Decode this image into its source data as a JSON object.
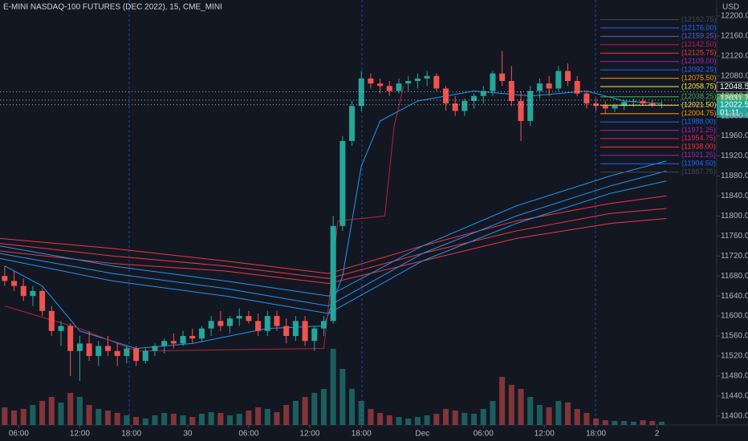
{
  "chart_data": {
    "type": "candlestick",
    "title": "E-MINI NASDAQ-100 FUTURES (DEC 2022), 15, CME_MINI",
    "currency": "USD",
    "up_color": "#26a69a",
    "down_color": "#ef5350",
    "ohlc": [
      [
        11680,
        11700,
        11660,
        11670
      ],
      [
        11670,
        11690,
        11650,
        11660
      ],
      [
        11660,
        11675,
        11630,
        11640
      ],
      [
        11640,
        11660,
        11620,
        11650
      ],
      [
        11650,
        11655,
        11600,
        11610
      ],
      [
        11610,
        11620,
        11560,
        11570
      ],
      [
        11570,
        11590,
        11540,
        11580
      ],
      [
        11580,
        11585,
        11480,
        11530
      ],
      [
        11530,
        11560,
        11470,
        11545
      ],
      [
        11545,
        11570,
        11510,
        11520
      ],
      [
        11520,
        11550,
        11500,
        11540
      ],
      [
        11540,
        11560,
        11520,
        11530
      ],
      [
        11530,
        11545,
        11500,
        11520
      ],
      [
        11520,
        11540,
        11505,
        11535
      ],
      [
        11535,
        11540,
        11500,
        11510
      ],
      [
        11510,
        11535,
        11505,
        11530
      ],
      [
        11530,
        11545,
        11520,
        11540
      ],
      [
        11540,
        11555,
        11525,
        11550
      ],
      [
        11550,
        11565,
        11535,
        11545
      ],
      [
        11545,
        11570,
        11540,
        11560
      ],
      [
        11560,
        11575,
        11545,
        11555
      ],
      [
        11555,
        11580,
        11550,
        11575
      ],
      [
        11575,
        11600,
        11560,
        11590
      ],
      [
        11590,
        11610,
        11570,
        11580
      ],
      [
        11580,
        11600,
        11565,
        11595
      ],
      [
        11595,
        11615,
        11580,
        11600
      ],
      [
        11600,
        11610,
        11585,
        11590
      ],
      [
        11590,
        11605,
        11560,
        11570
      ],
      [
        11570,
        11610,
        11560,
        11600
      ],
      [
        11600,
        11610,
        11570,
        11580
      ],
      [
        11580,
        11595,
        11545,
        11560
      ],
      [
        11560,
        11600,
        11550,
        11590
      ],
      [
        11590,
        11600,
        11540,
        11550
      ],
      [
        11550,
        11580,
        11530,
        11575
      ],
      [
        11575,
        11600,
        11560,
        11590
      ],
      [
        11590,
        11800,
        11585,
        11780
      ],
      [
        11780,
        11960,
        11770,
        11950
      ],
      [
        11950,
        12030,
        11940,
        12020
      ],
      [
        12020,
        12090,
        12010,
        12075
      ],
      [
        12075,
        12085,
        12055,
        12065
      ],
      [
        12065,
        12075,
        12045,
        12060
      ],
      [
        12060,
        12070,
        12040,
        12050
      ],
      [
        12050,
        12075,
        12045,
        12065
      ],
      [
        12065,
        12080,
        12050,
        12070
      ],
      [
        12070,
        12085,
        12055,
        12075
      ],
      [
        12075,
        12090,
        12060,
        12080
      ],
      [
        12080,
        12085,
        12050,
        12055
      ],
      [
        12055,
        12060,
        12010,
        12025
      ],
      [
        12025,
        12040,
        12000,
        12010
      ],
      [
        12010,
        12035,
        12000,
        12030
      ],
      [
        12030,
        12045,
        12015,
        12040
      ],
      [
        12040,
        12060,
        12025,
        12050
      ],
      [
        12050,
        12090,
        12040,
        12085
      ],
      [
        12085,
        12130,
        12060,
        12070
      ],
      [
        12070,
        12100,
        12020,
        12030
      ],
      [
        12030,
        12050,
        11950,
        11990
      ],
      [
        11990,
        12060,
        11980,
        12050
      ],
      [
        12050,
        12075,
        12035,
        12065
      ],
      [
        12065,
        12080,
        12040,
        12055
      ],
      [
        12055,
        12100,
        12050,
        12090
      ],
      [
        12090,
        12105,
        12060,
        12070
      ],
      [
        12070,
        12080,
        12040,
        12045
      ],
      [
        12045,
        12050,
        12015,
        12025
      ],
      [
        12025,
        12035,
        12010,
        12020
      ],
      [
        12020,
        12030,
        12005,
        12015
      ],
      [
        12015,
        12025,
        12008,
        12020
      ],
      [
        12020,
        12032,
        12012,
        12028
      ],
      [
        12028,
        12035,
        12018,
        12030
      ],
      [
        12030,
        12036,
        12020,
        12025
      ],
      [
        12025,
        12032,
        12018,
        12022
      ],
      [
        12022,
        12030,
        12015,
        12022.5
      ]
    ],
    "volume": [
      22,
      18,
      20,
      25,
      30,
      35,
      28,
      40,
      35,
      25,
      20,
      18,
      15,
      12,
      10,
      8,
      12,
      15,
      14,
      12,
      10,
      14,
      16,
      15,
      12,
      14,
      18,
      22,
      20,
      16,
      25,
      30,
      35,
      40,
      45,
      95,
      70,
      45,
      30,
      20,
      15,
      12,
      10,
      8,
      10,
      12,
      14,
      20,
      18,
      15,
      14,
      20,
      30,
      60,
      50,
      45,
      35,
      25,
      22,
      30,
      28,
      20,
      15,
      8,
      6,
      5,
      5,
      4,
      6,
      5,
      4
    ],
    "volume_lim": [
      0,
      100
    ],
    "xlim": [
      0,
      72
    ],
    "xticks": [
      {
        "value": 2,
        "label": "06:00"
      },
      {
        "value": 8.5,
        "label": "12:00"
      },
      {
        "value": 14,
        "label": "18:00"
      },
      {
        "value": 20,
        "label": "30"
      },
      {
        "value": 26.5,
        "label": "06:00"
      },
      {
        "value": 33,
        "label": "12:00"
      },
      {
        "value": 38.5,
        "label": "18:00"
      },
      {
        "value": 45,
        "label": "Dec"
      },
      {
        "value": 51.5,
        "label": "06:00"
      },
      {
        "value": 58,
        "label": "12:00"
      },
      {
        "value": 63.5,
        "label": "18:00"
      },
      {
        "value": 70,
        "label": "2"
      }
    ],
    "ylim": [
      11382,
      12232
    ],
    "yticks": [
      {
        "value": 12200,
        "label": "12200.00"
      },
      {
        "value": 12160,
        "label": "12160.00"
      },
      {
        "value": 12120,
        "label": "12120.00"
      },
      {
        "value": 12080,
        "label": "12080.00"
      },
      {
        "value": 12040,
        "label": "12040.00"
      },
      {
        "value": 12000,
        "label": "12000.00"
      },
      {
        "value": 11960,
        "label": "11960.00"
      },
      {
        "value": 11920,
        "label": "11920.00"
      },
      {
        "value": 11880,
        "label": "11880.00"
      },
      {
        "value": 11840,
        "label": "11840.00"
      },
      {
        "value": 11800,
        "label": "11800.00"
      },
      {
        "value": 11760,
        "label": "11760.00"
      },
      {
        "value": 11720,
        "label": "11720.00"
      },
      {
        "value": 11680,
        "label": "11680.00"
      },
      {
        "value": 11640,
        "label": "11640.00"
      },
      {
        "value": 11600,
        "label": "11600.00"
      },
      {
        "value": 11560,
        "label": "11560.00"
      },
      {
        "value": 11520,
        "label": "11520.00"
      },
      {
        "value": 11480,
        "label": "11480.00"
      },
      {
        "value": 11440,
        "label": "11440.00"
      },
      {
        "value": 11400,
        "label": "11400.00"
      }
    ],
    "lines": [
      {
        "color": "#f23645",
        "x": [
          0,
          12,
          24,
          35,
          45,
          55,
          65,
          71
        ],
        "values": [
          11755,
          11735,
          11710,
          11685,
          11740,
          11790,
          11825,
          11840
        ]
      },
      {
        "color": "#f23645",
        "x": [
          0,
          12,
          24,
          35,
          45,
          55,
          65,
          71
        ],
        "values": [
          11745,
          11720,
          11700,
          11675,
          11725,
          11770,
          11805,
          11815
        ]
      },
      {
        "color": "#f23645",
        "x": [
          0,
          12,
          24,
          35,
          45,
          55,
          65,
          71
        ],
        "values": [
          11730,
          11705,
          11690,
          11665,
          11710,
          11755,
          11785,
          11795
        ]
      },
      {
        "color": "#2196f3",
        "x": [
          0,
          12,
          24,
          35,
          45,
          55,
          65,
          71
        ],
        "values": [
          11740,
          11700,
          11670,
          11640,
          11740,
          11820,
          11880,
          11910
        ]
      },
      {
        "color": "#2196f3",
        "x": [
          0,
          12,
          24,
          35,
          45,
          55,
          65,
          71
        ],
        "values": [
          11725,
          11685,
          11655,
          11620,
          11725,
          11800,
          11860,
          11890
        ]
      },
      {
        "color": "#2196f3",
        "x": [
          0,
          12,
          24,
          35,
          45,
          55,
          65,
          71
        ],
        "values": [
          11715,
          11670,
          11640,
          11605,
          11710,
          11785,
          11845,
          11870
        ]
      },
      {
        "color": "#2196f3",
        "x": [
          0.5,
          4.5,
          8.5,
          14.5,
          20.5,
          28.5,
          34.5,
          36.5,
          38.5,
          40.5,
          44.5,
          50.5,
          56.5,
          62.5,
          66.5,
          70.5
        ],
        "values": [
          11700,
          11660,
          11570,
          11535,
          11545,
          11575,
          11580,
          11680,
          11900,
          11990,
          12030,
          12050,
          12040,
          12050,
          12030,
          12025
        ]
      },
      {
        "color": "#b22833",
        "x": [
          0.5,
          8.5,
          14.5,
          34.5,
          36,
          41,
          42,
          43
        ],
        "values": [
          11620,
          11575,
          11530,
          11535,
          11790,
          11800,
          11980,
          12060
        ]
      }
    ],
    "levels": {
      "values": [
        12192.75,
        12176.0,
        12159.25,
        12142.5,
        12125.75,
        12109.0,
        12092.25,
        12075.5,
        12058.75,
        12038.25,
        12021.5,
        12004.75,
        11988.0,
        11971.25,
        11954.75,
        11938.0,
        11921.25,
        11904.5,
        11887.75
      ],
      "value_labels": [
        "(12192.75)",
        "(12176.00)",
        "(12159.25)",
        "(12142.50)",
        "(12125.75)",
        "(12109.00)",
        "(12092.25)",
        "(12075.50)",
        "(12058.75)",
        "(12038.25)",
        "(12021.50)",
        "(12004.75)",
        "(11988.00)",
        "(11971.25)",
        "(11954.75)",
        "(11938.00)",
        "(11921.25)",
        "(11904.50)",
        "(11887.75)"
      ],
      "colors": [
        "#434651",
        "#2962ff",
        "#5b5bd6",
        "#c2185b",
        "#f23645",
        "#9c27b0",
        "#2962ff",
        "#ff9800",
        "#ffeb3b",
        "#4caf50",
        "#ffeb3b",
        "#ff9800",
        "#2962ff",
        "#9c27b0",
        "#e91e63",
        "#f23645",
        "#9c27b0",
        "#2962ff",
        "#434651"
      ]
    },
    "price_markers": {
      "values": [
        12048.5,
        12031.75,
        12022.5
      ],
      "value_labels": [
        "12048.50",
        "12031.75",
        "12022.50"
      ],
      "colors": [
        "#131722",
        "#4caf50",
        "#26a69a"
      ],
      "countdown": "01:11"
    }
  }
}
